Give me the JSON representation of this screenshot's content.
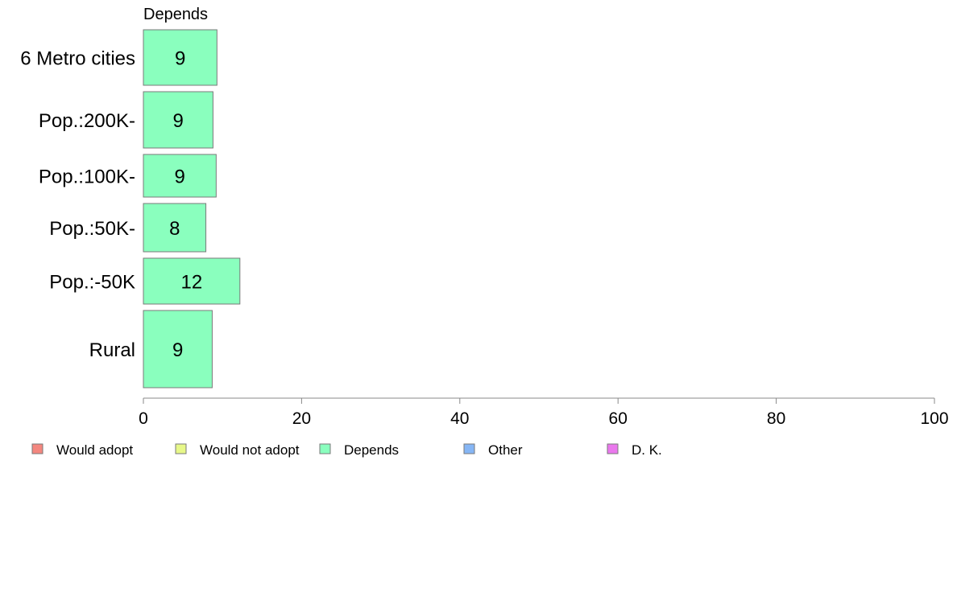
{
  "chart_data": {
    "type": "bar",
    "orientation": "horizontal",
    "stacked": true,
    "series_title": "Depends",
    "categories": [
      "6 Metro cities",
      "Pop.:200K-",
      "Pop.:100K-",
      "Pop.:50K-",
      "Pop.:-50K",
      "Rural"
    ],
    "series": [
      {
        "name": "Would adopt",
        "values": [
          0,
          0,
          0,
          0,
          0,
          0
        ]
      },
      {
        "name": "Would not adopt",
        "values": [
          0,
          0,
          0,
          0,
          0,
          0
        ]
      },
      {
        "name": "Depends",
        "values": [
          9.3,
          8.8,
          9.2,
          7.9,
          12.2,
          8.7
        ],
        "labels": [
          "9",
          "9",
          "9",
          "8",
          "12",
          "9"
        ]
      },
      {
        "name": "Other",
        "values": [
          0,
          0,
          0,
          0,
          0,
          0
        ]
      },
      {
        "name": "D. K.",
        "values": [
          0,
          0,
          0,
          0,
          0,
          0
        ]
      }
    ],
    "xlim": [
      0,
      100
    ],
    "xticks": [
      0,
      20,
      40,
      60,
      80,
      100
    ],
    "grid": false,
    "legend_position": "bottom"
  },
  "colors": {
    "Would adopt": "#f4877f",
    "Would not adopt": "#e7f889",
    "Depends": "#8affbe",
    "Other": "#86b6f5",
    "D. K.": "#ea78ed",
    "bar_stroke": "#7a7a7a",
    "axis": "#888888"
  }
}
